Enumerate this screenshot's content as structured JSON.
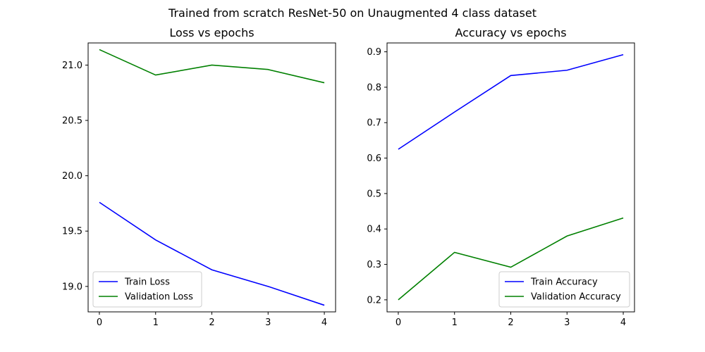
{
  "figure": {
    "suptitle": "Trained from scratch ResNet-50 on Unaugmented 4 class dataset"
  },
  "chart_data": [
    {
      "type": "line",
      "title": "Loss vs epochs",
      "xlabel": "",
      "ylabel": "",
      "x": [
        0,
        1,
        2,
        3,
        4
      ],
      "xlim": [
        -0.2,
        4.2
      ],
      "ylim": [
        18.77,
        21.2
      ],
      "xticks": [
        "0",
        "1",
        "2",
        "3",
        "4"
      ],
      "yticks": [
        {
          "value": 19.0,
          "label": "19.0"
        },
        {
          "value": 19.5,
          "label": "19.5"
        },
        {
          "value": 20.0,
          "label": "20.0"
        },
        {
          "value": 20.5,
          "label": "20.5"
        },
        {
          "value": 21.0,
          "label": "21.0"
        }
      ],
      "grid": false,
      "legend_position": "lower-left",
      "series": [
        {
          "name": "Train Loss",
          "color": "#0000ff",
          "values": [
            19.76,
            19.42,
            19.15,
            19.0,
            18.83
          ]
        },
        {
          "name": "Validation Loss",
          "color": "#008000",
          "values": [
            21.14,
            20.91,
            21.0,
            20.96,
            20.84
          ]
        }
      ]
    },
    {
      "type": "line",
      "title": "Accuracy vs epochs",
      "xlabel": "",
      "ylabel": "",
      "x": [
        0,
        1,
        2,
        3,
        4
      ],
      "xlim": [
        -0.2,
        4.2
      ],
      "ylim": [
        0.166,
        0.925
      ],
      "xticks": [
        "0",
        "1",
        "2",
        "3",
        "4"
      ],
      "yticks": [
        {
          "value": 0.2,
          "label": "0.2"
        },
        {
          "value": 0.3,
          "label": "0.3"
        },
        {
          "value": 0.4,
          "label": "0.4"
        },
        {
          "value": 0.5,
          "label": "0.5"
        },
        {
          "value": 0.6,
          "label": "0.6"
        },
        {
          "value": 0.7,
          "label": "0.7"
        },
        {
          "value": 0.8,
          "label": "0.8"
        },
        {
          "value": 0.9,
          "label": "0.9"
        }
      ],
      "grid": false,
      "legend_position": "lower-right",
      "series": [
        {
          "name": "Train Accuracy",
          "color": "#0000ff",
          "values": [
            0.625,
            0.73,
            0.833,
            0.848,
            0.892
          ]
        },
        {
          "name": "Validation Accuracy",
          "color": "#008000",
          "values": [
            0.2,
            0.334,
            0.292,
            0.38,
            0.431
          ]
        }
      ]
    }
  ]
}
